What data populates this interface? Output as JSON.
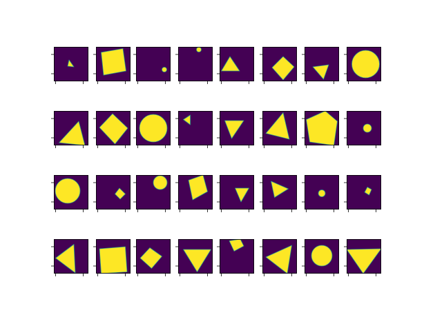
{
  "colors": {
    "background": "#440154",
    "shape": "#fde725",
    "edge": "#2a9d8f",
    "axes": "#000000"
  },
  "chart_data": {
    "type": "image-grid",
    "rows": 4,
    "cols": 8,
    "panel_domain": [
      0,
      1
    ],
    "ticks": {
      "x": [
        0.05,
        0.85
      ],
      "y": [
        0.22,
        0.78
      ]
    },
    "tick_labels_visible": false,
    "grid": false,
    "panels": [
      {
        "shape": "triangle",
        "points": [
          [
            0.44,
            0.38
          ],
          [
            0.58,
            0.58
          ],
          [
            0.4,
            0.56
          ]
        ]
      },
      {
        "shape": "polygon",
        "points": [
          [
            0.15,
            0.16
          ],
          [
            0.78,
            0.05
          ],
          [
            0.87,
            0.7
          ],
          [
            0.22,
            0.82
          ]
        ]
      },
      {
        "shape": "circle",
        "cx": 0.82,
        "cy": 0.66,
        "r": 0.07
      },
      {
        "shape": "circle",
        "cx": 0.6,
        "cy": 0.08,
        "r": 0.07
      },
      {
        "shape": "triangle",
        "points": [
          [
            0.05,
            0.7
          ],
          [
            0.3,
            0.28
          ],
          [
            0.58,
            0.7
          ]
        ]
      },
      {
        "shape": "polygon",
        "points": [
          [
            0.28,
            0.6
          ],
          [
            0.6,
            0.28
          ],
          [
            0.92,
            0.58
          ],
          [
            0.6,
            0.96
          ]
        ]
      },
      {
        "shape": "triangle",
        "points": [
          [
            0.24,
            0.58
          ],
          [
            0.7,
            0.52
          ],
          [
            0.55,
            0.94
          ]
        ]
      },
      {
        "shape": "circle",
        "cx": 0.55,
        "cy": 0.5,
        "r": 0.4
      },
      {
        "shape": "triangle",
        "points": [
          [
            0.15,
            0.92
          ],
          [
            0.72,
            0.3
          ],
          [
            0.9,
            1.0
          ]
        ]
      },
      {
        "shape": "polygon",
        "points": [
          [
            0.1,
            0.48
          ],
          [
            0.48,
            0.08
          ],
          [
            0.92,
            0.5
          ],
          [
            0.55,
            0.96
          ]
        ]
      },
      {
        "shape": "circle",
        "cx": 0.5,
        "cy": 0.5,
        "r": 0.4
      },
      {
        "shape": "triangle",
        "points": [
          [
            0.15,
            0.25
          ],
          [
            0.35,
            0.12
          ],
          [
            0.35,
            0.4
          ]
        ]
      },
      {
        "shape": "triangle",
        "points": [
          [
            0.15,
            0.28
          ],
          [
            0.7,
            0.28
          ],
          [
            0.35,
            0.8
          ]
        ]
      },
      {
        "shape": "triangle",
        "points": [
          [
            0.6,
            0.05
          ],
          [
            0.1,
            0.65
          ],
          [
            0.78,
            0.82
          ]
        ]
      },
      {
        "shape": "polygon",
        "points": [
          [
            0.05,
            0.25
          ],
          [
            0.6,
            0.0
          ],
          [
            0.95,
            0.3
          ],
          [
            0.85,
            1.0
          ],
          [
            0.15,
            0.9
          ]
        ]
      },
      {
        "shape": "circle",
        "cx": 0.6,
        "cy": 0.5,
        "r": 0.12
      },
      {
        "shape": "circle",
        "cx": 0.4,
        "cy": 0.46,
        "r": 0.36
      },
      {
        "shape": "polygon",
        "points": [
          [
            0.68,
            0.38
          ],
          [
            0.85,
            0.55
          ],
          [
            0.7,
            0.7
          ],
          [
            0.55,
            0.55
          ]
        ]
      },
      {
        "shape": "circle",
        "cx": 0.7,
        "cy": 0.22,
        "r": 0.2
      },
      {
        "shape": "polygon",
        "points": [
          [
            0.3,
            0.15
          ],
          [
            0.72,
            0.0
          ],
          [
            0.85,
            0.48
          ],
          [
            0.42,
            0.72
          ]
        ]
      },
      {
        "shape": "triangle",
        "points": [
          [
            0.45,
            0.38
          ],
          [
            0.85,
            0.38
          ],
          [
            0.62,
            0.78
          ]
        ]
      },
      {
        "shape": "triangle",
        "points": [
          [
            0.25,
            0.18
          ],
          [
            0.75,
            0.4
          ],
          [
            0.35,
            0.65
          ]
        ]
      },
      {
        "shape": "circle",
        "cx": 0.5,
        "cy": 0.53,
        "r": 0.1
      },
      {
        "shape": "polygon",
        "points": [
          [
            0.6,
            0.35
          ],
          [
            0.72,
            0.42
          ],
          [
            0.65,
            0.58
          ],
          [
            0.52,
            0.5
          ]
        ]
      },
      {
        "shape": "triangle",
        "points": [
          [
            0.05,
            0.55
          ],
          [
            0.58,
            0.15
          ],
          [
            0.62,
            0.98
          ]
        ]
      },
      {
        "shape": "polygon",
        "points": [
          [
            0.1,
            0.28
          ],
          [
            0.85,
            0.22
          ],
          [
            0.9,
            0.95
          ],
          [
            0.15,
            1.0
          ]
        ]
      },
      {
        "shape": "polygon",
        "points": [
          [
            0.12,
            0.55
          ],
          [
            0.4,
            0.25
          ],
          [
            0.75,
            0.5
          ],
          [
            0.45,
            0.85
          ]
        ]
      },
      {
        "shape": "triangle",
        "points": [
          [
            0.15,
            0.3
          ],
          [
            0.95,
            0.3
          ],
          [
            0.55,
            0.95
          ]
        ]
      },
      {
        "shape": "polygon",
        "points": [
          [
            0.28,
            0.05
          ],
          [
            0.6,
            0.0
          ],
          [
            0.7,
            0.2
          ],
          [
            0.42,
            0.35
          ]
        ]
      },
      {
        "shape": "triangle",
        "points": [
          [
            0.1,
            0.52
          ],
          [
            0.85,
            0.18
          ],
          [
            0.72,
            1.0
          ]
        ]
      },
      {
        "shape": "circle",
        "cx": 0.5,
        "cy": 0.48,
        "r": 0.3
      },
      {
        "shape": "triangle",
        "points": [
          [
            0.0,
            0.3
          ],
          [
            1.0,
            0.28
          ],
          [
            0.48,
            1.0
          ]
        ]
      }
    ]
  }
}
